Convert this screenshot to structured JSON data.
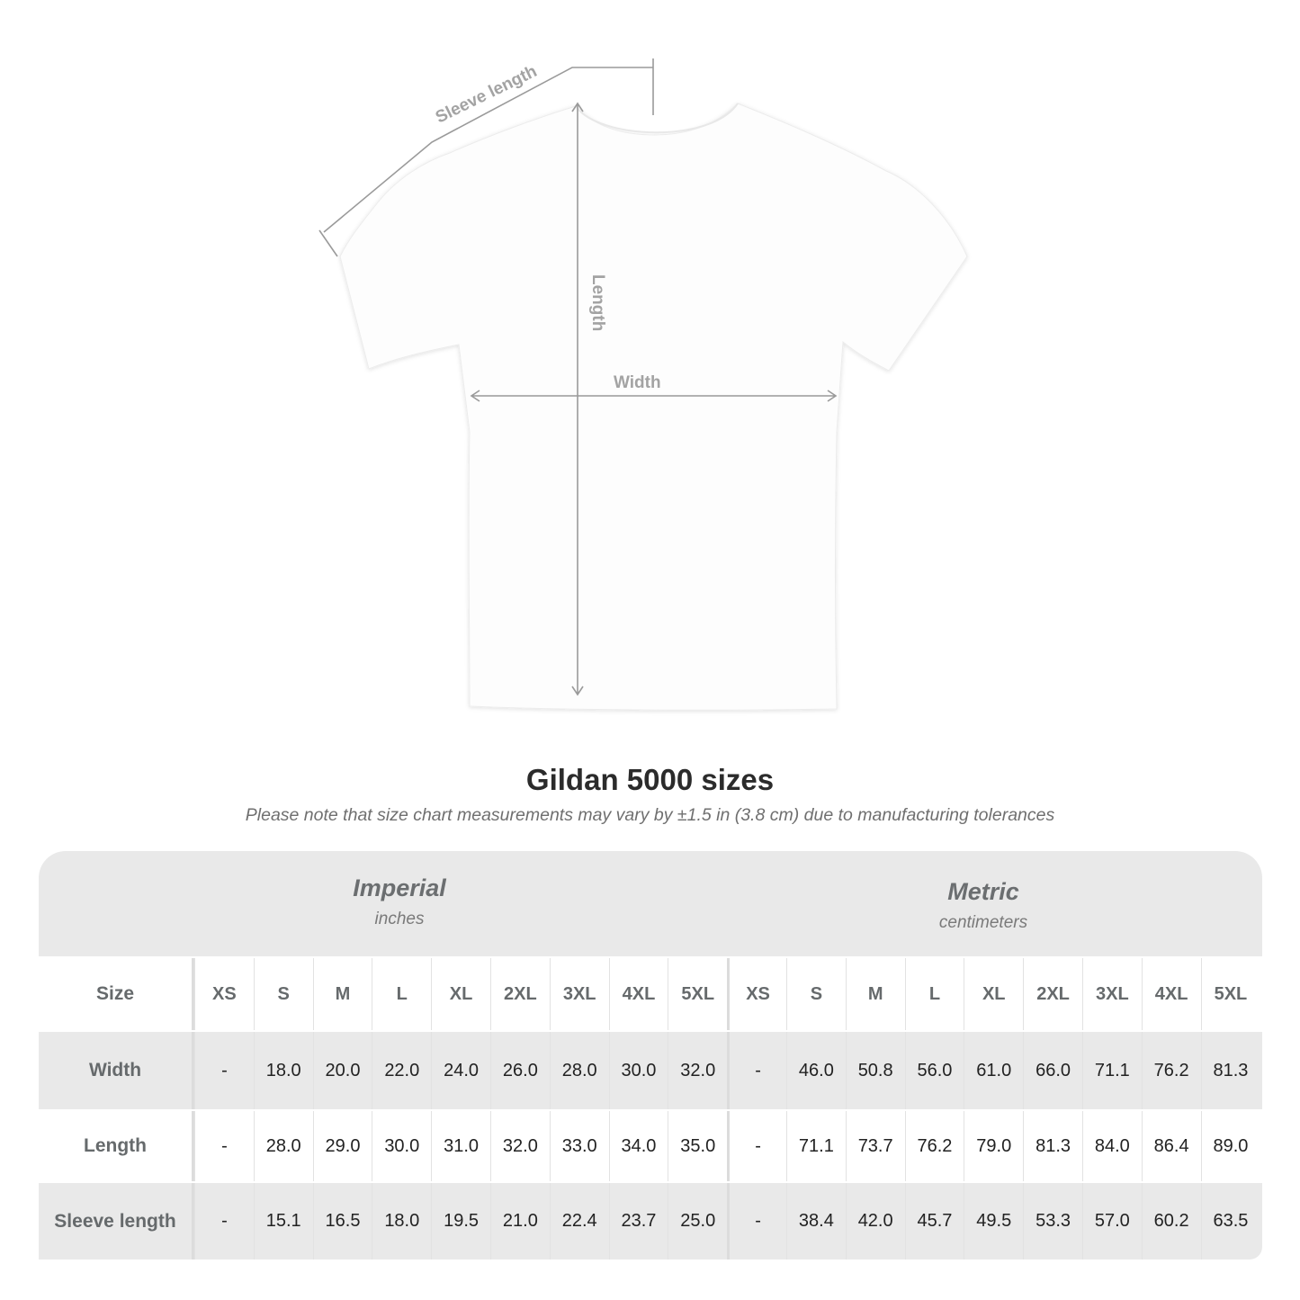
{
  "diagram": {
    "labels": {
      "sleeve": "Sleeve length",
      "length": "Length",
      "width": "Width"
    }
  },
  "title": "Gildan 5000 sizes",
  "subtitle": "Please note that size chart measurements may vary by ±1.5 in (3.8 cm) due to manufacturing tolerances",
  "table": {
    "imperial": {
      "name": "Imperial",
      "unit": "inches"
    },
    "metric": {
      "name": "Metric",
      "unit": "centimeters"
    },
    "header": {
      "label": "Size",
      "imperial_sizes": [
        "XS",
        "S",
        "M",
        "L",
        "XL",
        "2XL",
        "3XL",
        "4XL",
        "5XL"
      ],
      "metric_sizes": [
        "XS",
        "S",
        "M",
        "L",
        "XL",
        "2XL",
        "3XL",
        "4XL",
        "5XL"
      ]
    },
    "rows": [
      {
        "label": "Width",
        "imperial": [
          "-",
          "18.0",
          "20.0",
          "22.0",
          "24.0",
          "26.0",
          "28.0",
          "30.0",
          "32.0"
        ],
        "metric": [
          "-",
          "46.0",
          "50.8",
          "56.0",
          "61.0",
          "66.0",
          "71.1",
          "76.2",
          "81.3"
        ]
      },
      {
        "label": "Length",
        "imperial": [
          "-",
          "28.0",
          "29.0",
          "30.0",
          "31.0",
          "32.0",
          "33.0",
          "34.0",
          "35.0"
        ],
        "metric": [
          "-",
          "71.1",
          "73.7",
          "76.2",
          "79.0",
          "81.3",
          "84.0",
          "86.4",
          "89.0"
        ]
      },
      {
        "label": "Sleeve length",
        "imperial": [
          "-",
          "15.1",
          "16.5",
          "18.0",
          "19.5",
          "21.0",
          "22.4",
          "23.7",
          "25.0"
        ],
        "metric": [
          "-",
          "38.4",
          "42.0",
          "45.7",
          "49.5",
          "53.3",
          "57.0",
          "60.2",
          "63.5"
        ]
      }
    ]
  }
}
